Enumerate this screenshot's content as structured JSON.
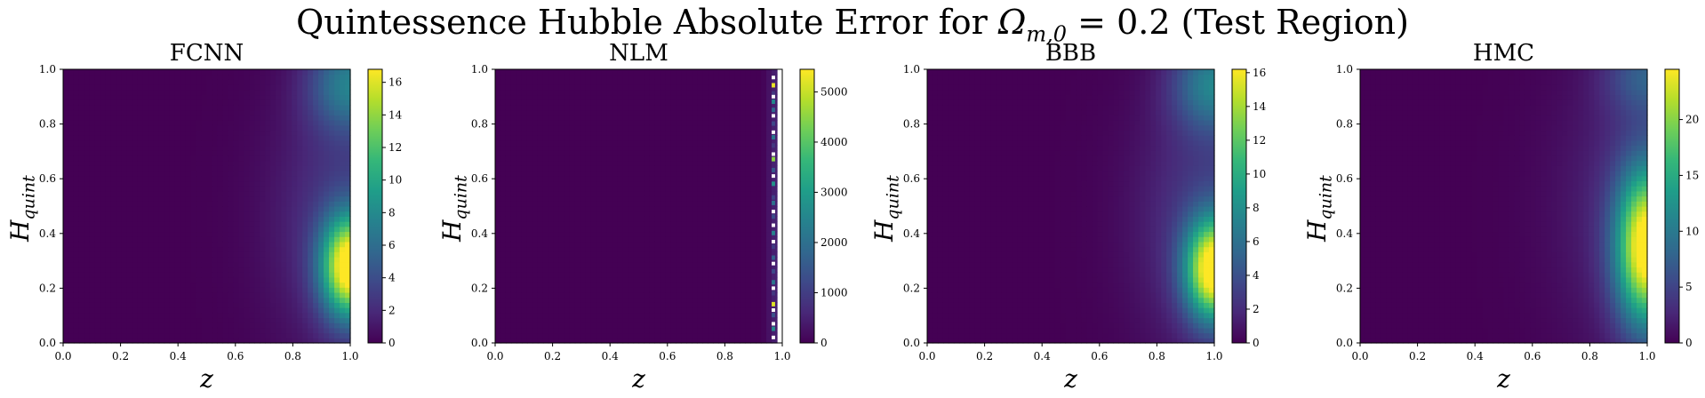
{
  "figure": {
    "suptitle_prefix": "Quintessence Hubble Absolute Error for ",
    "suptitle_omega": "Ω",
    "suptitle_sub": "m,0",
    "suptitle_suffix": " = 0.2 (Test Region)",
    "colormap": "viridis",
    "colors": [
      "#440154",
      "#482878",
      "#3e4989",
      "#31688e",
      "#26828e",
      "#1f9e89",
      "#35b779",
      "#6ece58",
      "#b5de2b",
      "#fde725"
    ]
  },
  "chart_data": [
    {
      "type": "heatmap",
      "title": "FCNN",
      "xlabel": "z",
      "ylabel_main": "H",
      "ylabel_sub": "quint",
      "xlim": [
        0,
        1
      ],
      "ylim": [
        0,
        1
      ],
      "x_ticks": [
        "0.0",
        "0.2",
        "0.4",
        "0.6",
        "0.8",
        "1.0"
      ],
      "y_ticks": [
        "0.0",
        "0.2",
        "0.4",
        "0.6",
        "0.8",
        "1.0"
      ],
      "colorbar": {
        "min": 0,
        "max": 16.8,
        "ticks": [
          0,
          2,
          4,
          6,
          8,
          10,
          12,
          14,
          16
        ]
      },
      "field": [
        {
          "x": 1.0,
          "y": 0.28,
          "amp": 16.8,
          "sx": 0.07,
          "sy": 0.13
        },
        {
          "x": 1.0,
          "y": 0.95,
          "amp": 6.5,
          "sx": 0.1,
          "sy": 0.12
        },
        {
          "x": 1.0,
          "y": 0.45,
          "amp": 3.0,
          "sx": 0.18,
          "sy": 0.35
        }
      ]
    },
    {
      "type": "heatmap",
      "title": "NLM",
      "xlabel": "z",
      "ylabel_main": "H",
      "ylabel_sub": "quint",
      "xlim": [
        0,
        1
      ],
      "ylim": [
        0,
        1
      ],
      "x_ticks": [
        "0.0",
        "0.2",
        "0.4",
        "0.6",
        "0.8",
        "1.0"
      ],
      "y_ticks": [
        "0.0",
        "0.2",
        "0.4",
        "0.6",
        "0.8",
        "1.0"
      ],
      "colorbar": {
        "min": 0,
        "max": 5450,
        "ticks": [
          0,
          1000,
          2000,
          3000,
          4000,
          5000
        ]
      },
      "valid_z_max": 0.975,
      "field": [
        {
          "x": 0.975,
          "y": 0.5,
          "amp": 500,
          "sx": 0.02,
          "sy": 1.0
        }
      ],
      "edge_spikes": [
        {
          "y": 0.94,
          "v": 5300
        },
        {
          "y": 0.91,
          "v": 900
        },
        {
          "y": 0.88,
          "v": 2500
        },
        {
          "y": 0.85,
          "v": 1800
        },
        {
          "y": 0.8,
          "v": 1200
        },
        {
          "y": 0.75,
          "v": 2200
        },
        {
          "y": 0.72,
          "v": 900
        },
        {
          "y": 0.67,
          "v": 4500
        },
        {
          "y": 0.63,
          "v": 1500
        },
        {
          "y": 0.58,
          "v": 2800
        },
        {
          "y": 0.53,
          "v": 1100
        },
        {
          "y": 0.51,
          "v": 2000
        },
        {
          "y": 0.46,
          "v": 1300
        },
        {
          "y": 0.4,
          "v": 2400
        },
        {
          "y": 0.35,
          "v": 1000
        },
        {
          "y": 0.31,
          "v": 1700
        },
        {
          "y": 0.26,
          "v": 1200
        },
        {
          "y": 0.22,
          "v": 2100
        },
        {
          "y": 0.18,
          "v": 900
        },
        {
          "y": 0.14,
          "v": 5200
        },
        {
          "y": 0.1,
          "v": 1400
        },
        {
          "y": 0.05,
          "v": 2600
        }
      ],
      "nan_cells": [
        {
          "y": 0.97
        },
        {
          "y": 0.9
        },
        {
          "y": 0.83
        },
        {
          "y": 0.77
        },
        {
          "y": 0.69
        },
        {
          "y": 0.61
        },
        {
          "y": 0.48
        },
        {
          "y": 0.43
        },
        {
          "y": 0.37
        },
        {
          "y": 0.29
        },
        {
          "y": 0.2
        },
        {
          "y": 0.12
        },
        {
          "y": 0.07
        },
        {
          "y": 0.02
        }
      ]
    },
    {
      "type": "heatmap",
      "title": "BBB",
      "xlabel": "z",
      "ylabel_main": "H",
      "ylabel_sub": "quint",
      "xlim": [
        0,
        1
      ],
      "ylim": [
        0,
        1
      ],
      "x_ticks": [
        "0.0",
        "0.2",
        "0.4",
        "0.6",
        "0.8",
        "1.0"
      ],
      "y_ticks": [
        "0.0",
        "0.2",
        "0.4",
        "0.6",
        "0.8",
        "1.0"
      ],
      "colorbar": {
        "min": 0,
        "max": 16.2,
        "ticks": [
          0,
          2,
          4,
          6,
          8,
          10,
          12,
          14,
          16
        ]
      },
      "field": [
        {
          "x": 1.0,
          "y": 0.27,
          "amp": 16.2,
          "sx": 0.07,
          "sy": 0.13
        },
        {
          "x": 1.0,
          "y": 0.95,
          "amp": 6.5,
          "sx": 0.1,
          "sy": 0.12
        },
        {
          "x": 1.0,
          "y": 0.45,
          "amp": 3.0,
          "sx": 0.18,
          "sy": 0.35
        }
      ]
    },
    {
      "type": "heatmap",
      "title": "HMC",
      "xlabel": "z",
      "ylabel_main": "H",
      "ylabel_sub": "quint",
      "xlim": [
        0,
        1
      ],
      "ylim": [
        0,
        1
      ],
      "x_ticks": [
        "0.0",
        "0.2",
        "0.4",
        "0.6",
        "0.8",
        "1.0"
      ],
      "y_ticks": [
        "0.0",
        "0.2",
        "0.4",
        "0.6",
        "0.8",
        "1.0"
      ],
      "colorbar": {
        "min": 0,
        "max": 24.5,
        "ticks": [
          0,
          5,
          10,
          15,
          20
        ]
      },
      "field": [
        {
          "x": 1.0,
          "y": 0.35,
          "amp": 24.5,
          "sx": 0.075,
          "sy": 0.2
        },
        {
          "x": 1.0,
          "y": 0.98,
          "amp": 6.0,
          "sx": 0.1,
          "sy": 0.1
        },
        {
          "x": 1.0,
          "y": 0.5,
          "amp": 3.5,
          "sx": 0.2,
          "sy": 0.4
        }
      ]
    }
  ]
}
